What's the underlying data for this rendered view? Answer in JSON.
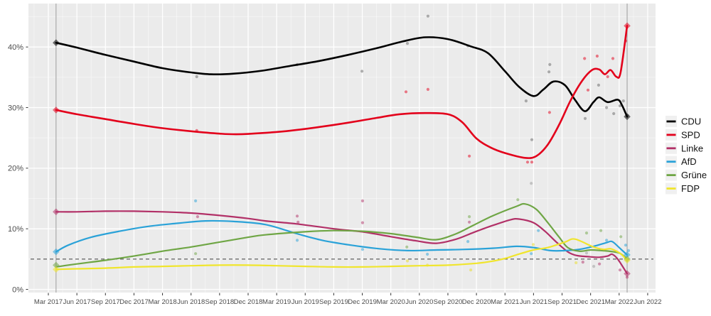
{
  "chart_data": {
    "type": "line",
    "description": "Party polling trends with poll scatter points, smoothed trend lines, election result diamonds and 5% threshold line",
    "x_axis": {
      "tick_labels": [
        "Mar 2017",
        "Jun 2017",
        "Sep 2017",
        "Dec 2017",
        "Mar 2018",
        "Jun 2018",
        "Sep 2018",
        "Dec 2018",
        "Mar 2019",
        "Jun 2019",
        "Sep 2019",
        "Dec 2019",
        "Mar 2020",
        "Jun 2020",
        "Sep 2020",
        "Dec 2020",
        "Mar 2021",
        "Jun 2021",
        "Sep 2021",
        "Dec 2021",
        "Mar 2022",
        "Jun 2022"
      ]
    },
    "y_axis": {
      "tick_labels": [
        "0%",
        "10%",
        "20%",
        "30%",
        "40%"
      ],
      "tick_values": [
        0,
        10,
        20,
        30,
        40
      ],
      "minor_values": [
        5,
        15,
        25,
        35,
        45
      ],
      "range": [
        0,
        47
      ]
    },
    "grid": "on",
    "threshold_line": {
      "value": 5,
      "style": "dashed"
    },
    "election_lines_quarters": [
      0.27,
      20.28
    ],
    "legend": {
      "position": "right",
      "items": [
        "CDU",
        "SPD",
        "Linke",
        "AfD",
        "Grüne",
        "FDP"
      ]
    },
    "style": {
      "panel_bg": "#ebebeb",
      "grid_major": "#ffffff",
      "grid_minor": "rgba(255,255,255,0.55)",
      "election_line": "#a3a3a3",
      "threshold": "#3c3c3c",
      "axis_text": "#4d4d4d",
      "legend_key_bg": "#f0f0f0",
      "legend_text": "#111111"
    },
    "series": [
      {
        "name": "CDU",
        "color": "#000000",
        "point_color": "#666666",
        "trend": [
          [
            0.27,
            40.7
          ],
          [
            1,
            39.9
          ],
          [
            2,
            38.7
          ],
          [
            3,
            37.6
          ],
          [
            4,
            36.5
          ],
          [
            5,
            35.8
          ],
          [
            5.7,
            35.5
          ],
          [
            6.5,
            35.6
          ],
          [
            7.5,
            36.1
          ],
          [
            8.5,
            36.9
          ],
          [
            9.5,
            37.7
          ],
          [
            10.5,
            38.7
          ],
          [
            11.5,
            39.8
          ],
          [
            12.4,
            40.9
          ],
          [
            13.2,
            41.6
          ],
          [
            14,
            41.3
          ],
          [
            14.8,
            40.1
          ],
          [
            15.4,
            39.0
          ],
          [
            16,
            36.0
          ],
          [
            16.5,
            33.4
          ],
          [
            17,
            31.9
          ],
          [
            17.35,
            33.0
          ],
          [
            17.7,
            34.3
          ],
          [
            18.1,
            33.7
          ],
          [
            18.45,
            31.3
          ],
          [
            18.8,
            29.4
          ],
          [
            19.1,
            30.9
          ],
          [
            19.3,
            31.7
          ],
          [
            19.6,
            30.9
          ],
          [
            19.95,
            31.3
          ],
          [
            20.1,
            30.4
          ],
          [
            20.28,
            28.5
          ]
        ],
        "polls": [
          [
            5.2,
            35.1
          ],
          [
            8.72,
            37.1
          ],
          [
            10.99,
            36.0
          ],
          [
            12.58,
            40.6
          ],
          [
            13.3,
            45.1
          ],
          [
            14.7,
            40.2
          ],
          [
            16.74,
            31.1
          ],
          [
            16.94,
            24.7
          ],
          [
            17.54,
            35.9
          ],
          [
            17.57,
            37.1
          ],
          [
            18.81,
            28.2
          ],
          [
            19.28,
            33.7
          ],
          [
            19.56,
            30.0
          ],
          [
            19.81,
            29.0
          ],
          [
            20.03,
            30.3
          ],
          [
            20.15,
            31.1
          ],
          [
            20.3,
            28.7
          ]
        ],
        "election_results": [
          [
            0.27,
            40.7
          ],
          [
            20.28,
            28.5
          ]
        ]
      },
      {
        "name": "SPD",
        "color": "#e3001b",
        "point_color": "#e3001b",
        "trend": [
          [
            0.27,
            29.6
          ],
          [
            1,
            28.9
          ],
          [
            2,
            28.1
          ],
          [
            3,
            27.3
          ],
          [
            4,
            26.6
          ],
          [
            5,
            26.1
          ],
          [
            6,
            25.7
          ],
          [
            6.6,
            25.6
          ],
          [
            7.5,
            25.8
          ],
          [
            8.5,
            26.2
          ],
          [
            9.5,
            26.8
          ],
          [
            10.5,
            27.5
          ],
          [
            11.5,
            28.3
          ],
          [
            12.3,
            28.9
          ],
          [
            13.2,
            29.1
          ],
          [
            14,
            28.9
          ],
          [
            14.5,
            27.6
          ],
          [
            15,
            24.9
          ],
          [
            15.5,
            23.4
          ],
          [
            16,
            22.5
          ],
          [
            16.7,
            21.7
          ],
          [
            17.1,
            22.0
          ],
          [
            17.5,
            23.9
          ],
          [
            17.9,
            27.2
          ],
          [
            18.3,
            31.2
          ],
          [
            18.7,
            34.4
          ],
          [
            19.05,
            36.2
          ],
          [
            19.3,
            36.3
          ],
          [
            19.5,
            35.5
          ],
          [
            19.7,
            36.2
          ],
          [
            19.9,
            35.1
          ],
          [
            20.05,
            35.8
          ],
          [
            20.28,
            43.5
          ]
        ],
        "polls": [
          [
            5.2,
            26.2
          ],
          [
            12.53,
            32.6
          ],
          [
            13.3,
            33.0
          ],
          [
            14.75,
            22.0
          ],
          [
            16.79,
            21.0
          ],
          [
            16.94,
            21.0
          ],
          [
            17.56,
            29.2
          ],
          [
            18.79,
            38.1
          ],
          [
            18.91,
            32.9
          ],
          [
            19.23,
            38.5
          ],
          [
            19.6,
            35.1
          ],
          [
            19.78,
            38.1
          ],
          [
            20.23,
            41.0
          ]
        ],
        "election_results": [
          [
            0.27,
            29.6
          ],
          [
            20.28,
            43.5
          ]
        ]
      },
      {
        "name": "Linke",
        "color": "#b23067",
        "point_color": "#b23067",
        "trend": [
          [
            0.27,
            12.8
          ],
          [
            1,
            12.8
          ],
          [
            2,
            12.9
          ],
          [
            3,
            12.9
          ],
          [
            4,
            12.8
          ],
          [
            5,
            12.6
          ],
          [
            6,
            12.2
          ],
          [
            7,
            11.7
          ],
          [
            7.6,
            11.3
          ],
          [
            8.7,
            10.8
          ],
          [
            10,
            10.0
          ],
          [
            11,
            9.5
          ],
          [
            12,
            8.7
          ],
          [
            12.9,
            8.0
          ],
          [
            13.6,
            7.6
          ],
          [
            14.3,
            8.3
          ],
          [
            14.9,
            9.4
          ],
          [
            15.6,
            10.6
          ],
          [
            16.2,
            11.5
          ],
          [
            16.5,
            11.6
          ],
          [
            17,
            11.0
          ],
          [
            17.4,
            9.6
          ],
          [
            17.8,
            7.8
          ],
          [
            18.2,
            6.2
          ],
          [
            18.5,
            5.6
          ],
          [
            18.9,
            5.4
          ],
          [
            19.3,
            5.3
          ],
          [
            19.6,
            5.5
          ],
          [
            19.75,
            5.8
          ],
          [
            19.95,
            5.0
          ],
          [
            20.28,
            2.6
          ]
        ],
        "polls": [
          [
            5.23,
            12.0
          ],
          [
            8.72,
            12.1
          ],
          [
            8.75,
            11.1
          ],
          [
            11.01,
            14.6
          ],
          [
            11.01,
            11.0
          ],
          [
            14.75,
            11.1
          ],
          [
            18.73,
            4.5
          ],
          [
            19.31,
            4.2
          ],
          [
            20.03,
            3.2
          ],
          [
            20.28,
            2.0
          ]
        ],
        "election_results": [
          [
            0.27,
            12.8
          ],
          [
            20.28,
            2.6
          ]
        ]
      },
      {
        "name": "AfD",
        "color": "#2aa2d8",
        "point_color": "#2aa2d8",
        "trend": [
          [
            0.27,
            6.2
          ],
          [
            0.7,
            7.3
          ],
          [
            1.5,
            8.6
          ],
          [
            2.5,
            9.6
          ],
          [
            3.5,
            10.4
          ],
          [
            4.5,
            10.9
          ],
          [
            5.5,
            11.3
          ],
          [
            6.5,
            11.2
          ],
          [
            7.6,
            10.7
          ],
          [
            8.7,
            9.2
          ],
          [
            9.6,
            8.1
          ],
          [
            10.6,
            7.3
          ],
          [
            11.6,
            6.7
          ],
          [
            12.6,
            6.4
          ],
          [
            13.6,
            6.5
          ],
          [
            14.6,
            6.6
          ],
          [
            15.6,
            6.8
          ],
          [
            16.4,
            7.1
          ],
          [
            17,
            6.9
          ],
          [
            17.6,
            6.4
          ],
          [
            18.1,
            6.4
          ],
          [
            18.6,
            6.6
          ],
          [
            19.1,
            7.1
          ],
          [
            19.55,
            7.7
          ],
          [
            19.75,
            7.9
          ],
          [
            20,
            6.9
          ],
          [
            20.28,
            5.7
          ]
        ],
        "polls": [
          [
            5.16,
            14.6
          ],
          [
            8.72,
            8.1
          ],
          [
            11.01,
            6.6
          ],
          [
            13.28,
            5.8
          ],
          [
            14.7,
            7.9
          ],
          [
            16.92,
            5.9
          ],
          [
            17.17,
            9.7
          ],
          [
            19.56,
            8.1
          ],
          [
            20.23,
            7.3
          ],
          [
            20.33,
            6.4
          ]
        ],
        "election_results": [
          [
            0.27,
            6.2
          ],
          [
            20.28,
            5.7
          ]
        ]
      },
      {
        "name": "Grüne",
        "color": "#6fa645",
        "point_color": "#6fa645",
        "trend": [
          [
            0.27,
            3.7
          ],
          [
            1,
            4.2
          ],
          [
            2,
            4.8
          ],
          [
            3,
            5.5
          ],
          [
            4,
            6.3
          ],
          [
            5,
            7.0
          ],
          [
            6,
            7.8
          ],
          [
            7,
            8.6
          ],
          [
            7.6,
            9.0
          ],
          [
            9,
            9.5
          ],
          [
            10,
            9.7
          ],
          [
            11,
            9.6
          ],
          [
            12,
            9.2
          ],
          [
            12.9,
            8.6
          ],
          [
            13.6,
            8.2
          ],
          [
            14.3,
            9.2
          ],
          [
            14.9,
            10.6
          ],
          [
            15.6,
            12.2
          ],
          [
            16.4,
            13.7
          ],
          [
            16.7,
            14.1
          ],
          [
            17.1,
            13.2
          ],
          [
            17.5,
            11.0
          ],
          [
            17.9,
            8.6
          ],
          [
            18.2,
            6.9
          ],
          [
            18.6,
            6.3
          ],
          [
            19,
            6.5
          ],
          [
            19.4,
            6.4
          ],
          [
            19.8,
            6.2
          ],
          [
            20.05,
            5.9
          ],
          [
            20.28,
            5.0
          ]
        ],
        "polls": [
          [
            5.16,
            5.9
          ],
          [
            12.56,
            7.0
          ],
          [
            14.75,
            12.0
          ],
          [
            16.45,
            14.8
          ],
          [
            18.86,
            9.3
          ],
          [
            19.36,
            9.7
          ],
          [
            20.06,
            8.7
          ]
        ],
        "election_results": [
          [
            0.27,
            4.0
          ],
          [
            20.28,
            5.0
          ]
        ]
      },
      {
        "name": "FDP",
        "color": "#f0e52d",
        "point_color": "#e8dc20",
        "trend": [
          [
            0.27,
            3.3
          ],
          [
            1,
            3.4
          ],
          [
            2,
            3.5
          ],
          [
            3,
            3.7
          ],
          [
            4,
            3.8
          ],
          [
            5,
            3.9
          ],
          [
            6,
            4.0
          ],
          [
            7,
            4.0
          ],
          [
            8,
            3.9
          ],
          [
            9,
            3.8
          ],
          [
            10,
            3.7
          ],
          [
            11,
            3.7
          ],
          [
            12,
            3.8
          ],
          [
            13,
            3.9
          ],
          [
            14,
            4.0
          ],
          [
            15,
            4.3
          ],
          [
            15.5,
            4.6
          ],
          [
            16,
            5.1
          ],
          [
            16.4,
            5.7
          ],
          [
            17,
            6.5
          ],
          [
            17.5,
            6.9
          ],
          [
            18.1,
            7.8
          ],
          [
            18.45,
            8.3
          ],
          [
            19.1,
            7.0
          ],
          [
            19.45,
            6.6
          ],
          [
            19.7,
            6.7
          ],
          [
            19.95,
            6.2
          ],
          [
            20.1,
            5.7
          ],
          [
            20.28,
            4.8
          ]
        ],
        "polls": [
          [
            12.58,
            4.7
          ],
          [
            13.28,
            4.0
          ],
          [
            14.8,
            3.2
          ],
          [
            16.99,
            7.4
          ],
          [
            18.49,
            4.4
          ]
        ],
        "election_results": [
          [
            0.27,
            3.3
          ],
          [
            20.28,
            4.8
          ]
        ]
      }
    ],
    "other_points": {
      "color": "#9a9a9a",
      "polls": [
        [
          16.92,
          17.5
        ],
        [
          18.86,
          6.0
        ],
        [
          19.11,
          3.8
        ]
      ]
    }
  }
}
